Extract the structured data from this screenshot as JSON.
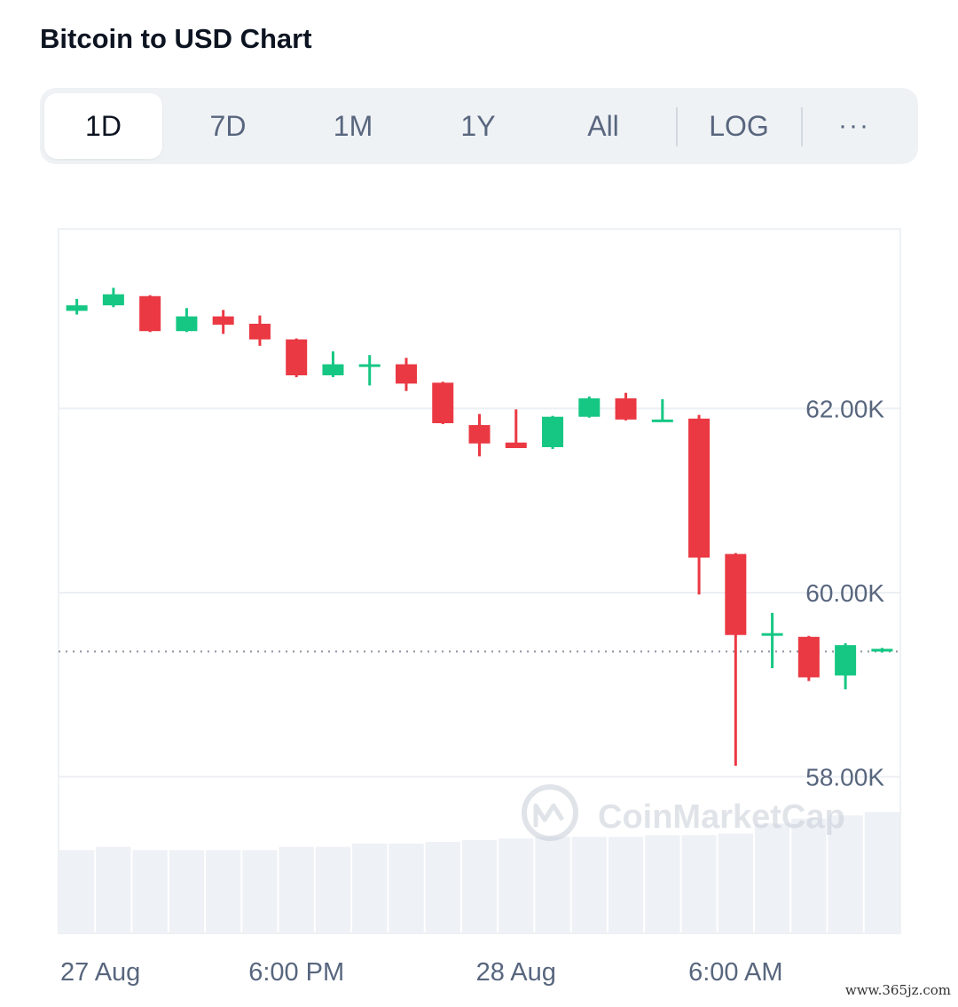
{
  "title": "Bitcoin to USD Chart",
  "tabs": [
    {
      "label": "1D",
      "active": true
    },
    {
      "label": "7D",
      "active": false
    },
    {
      "label": "1M",
      "active": false
    },
    {
      "label": "1Y",
      "active": false
    },
    {
      "label": "All",
      "active": false
    },
    {
      "label": "LOG",
      "active": false
    }
  ],
  "more_icon": "ellipsis-icon",
  "more_label": "···",
  "watermark": "CoinMarketCap",
  "footer_url": "www.365jz.com",
  "colors": {
    "up": "#16c784",
    "down": "#ea3943",
    "grid": "#eceff3",
    "label": "#58667e"
  },
  "chart_data": {
    "type": "candlestick",
    "yaxis": {
      "ticks": [
        "62.00K",
        "60.00K",
        "58.00K"
      ],
      "tick_values": [
        62000,
        60000,
        58000
      ],
      "ylim": [
        56300,
        63950
      ],
      "position": "right"
    },
    "xaxis": {
      "ticks": [
        "27 Aug",
        "6:00 PM",
        "28 Aug",
        "6:00 AM"
      ],
      "tick_candle_index": [
        0,
        6,
        12,
        18
      ]
    },
    "current_price": 59360,
    "candles": [
      {
        "o": 63060,
        "c": 63120,
        "h": 63190,
        "l": 63020
      },
      {
        "o": 63120,
        "c": 63240,
        "h": 63310,
        "l": 63100
      },
      {
        "o": 63220,
        "c": 62840,
        "h": 63230,
        "l": 62830
      },
      {
        "o": 62840,
        "c": 63000,
        "h": 63090,
        "l": 62830
      },
      {
        "o": 63000,
        "c": 62910,
        "h": 63070,
        "l": 62810
      },
      {
        "o": 62920,
        "c": 62750,
        "h": 63010,
        "l": 62680
      },
      {
        "o": 62750,
        "c": 62360,
        "h": 62760,
        "l": 62340
      },
      {
        "o": 62360,
        "c": 62480,
        "h": 62620,
        "l": 62340
      },
      {
        "o": 62460,
        "c": 62480,
        "h": 62580,
        "l": 62250
      },
      {
        "o": 62480,
        "c": 62270,
        "h": 62550,
        "l": 62190
      },
      {
        "o": 62280,
        "c": 61840,
        "h": 62290,
        "l": 61830
      },
      {
        "o": 61820,
        "c": 61620,
        "h": 61940,
        "l": 61480
      },
      {
        "o": 61630,
        "c": 61570,
        "h": 61990,
        "l": 61570
      },
      {
        "o": 61580,
        "c": 61910,
        "h": 61920,
        "l": 61560
      },
      {
        "o": 61910,
        "c": 62110,
        "h": 62130,
        "l": 61900
      },
      {
        "o": 62110,
        "c": 61880,
        "h": 62170,
        "l": 61870
      },
      {
        "o": 61880,
        "c": 61880,
        "h": 62100,
        "l": 61870
      },
      {
        "o": 61890,
        "c": 60380,
        "h": 61930,
        "l": 59980
      },
      {
        "o": 60420,
        "c": 59540,
        "h": 60430,
        "l": 58120
      },
      {
        "o": 59540,
        "c": 59560,
        "h": 59780,
        "l": 59180
      },
      {
        "o": 59520,
        "c": 59080,
        "h": 59530,
        "l": 59040
      },
      {
        "o": 59100,
        "c": 59430,
        "h": 59450,
        "l": 58950
      },
      {
        "o": 59360,
        "c": 59390,
        "h": 59400,
        "l": 59350
      }
    ],
    "volume": [
      100,
      104,
      100,
      100,
      100,
      100,
      104,
      104,
      108,
      108,
      110,
      112,
      114,
      116,
      116,
      116,
      118,
      118,
      120,
      132,
      138,
      142,
      146
    ]
  }
}
